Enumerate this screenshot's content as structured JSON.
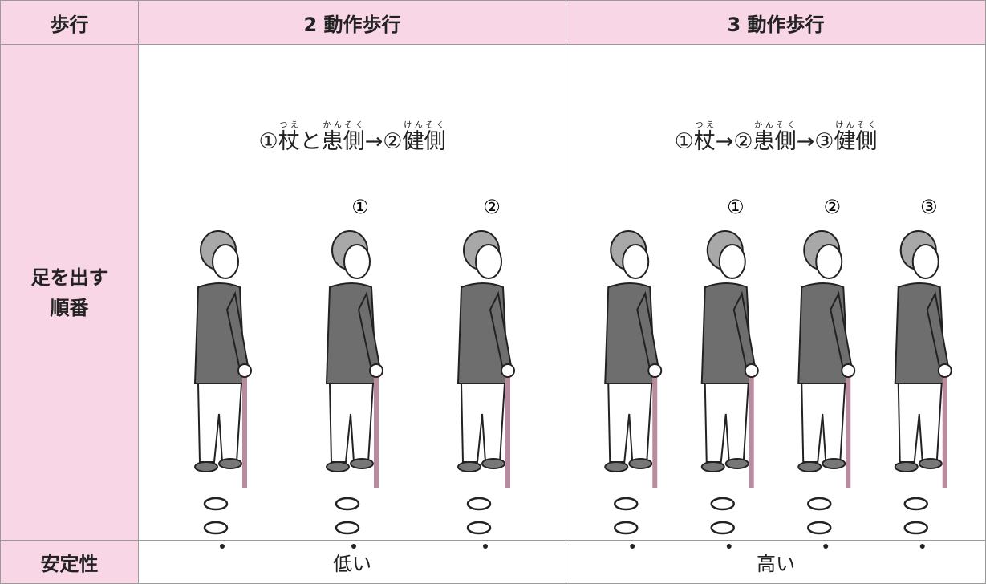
{
  "header": {
    "cells": [
      "歩行",
      "2 動作歩行",
      "3 動作歩行"
    ]
  },
  "order_row": {
    "label_lines": [
      "足を出す",
      "順番"
    ],
    "columns": [
      {
        "sequence": [
          {
            "text": "①"
          },
          {
            "text": "杖",
            "ruby": "つえ"
          },
          {
            "text": "と"
          },
          {
            "text": "患側",
            "ruby": "かんそく"
          },
          {
            "text": "→②"
          },
          {
            "text": "健側",
            "ruby": "けんそく"
          }
        ],
        "steps": [
          "①",
          "②"
        ]
      },
      {
        "sequence": [
          {
            "text": "①"
          },
          {
            "text": "杖",
            "ruby": "つえ"
          },
          {
            "text": "→②"
          },
          {
            "text": "患側",
            "ruby": "かんそく"
          },
          {
            "text": "→③"
          },
          {
            "text": "健側",
            "ruby": "けんそく"
          }
        ],
        "steps": [
          "①",
          "②",
          "③"
        ]
      }
    ]
  },
  "stability_row": {
    "label": "安定性",
    "values": [
      "低い",
      "高い"
    ]
  }
}
